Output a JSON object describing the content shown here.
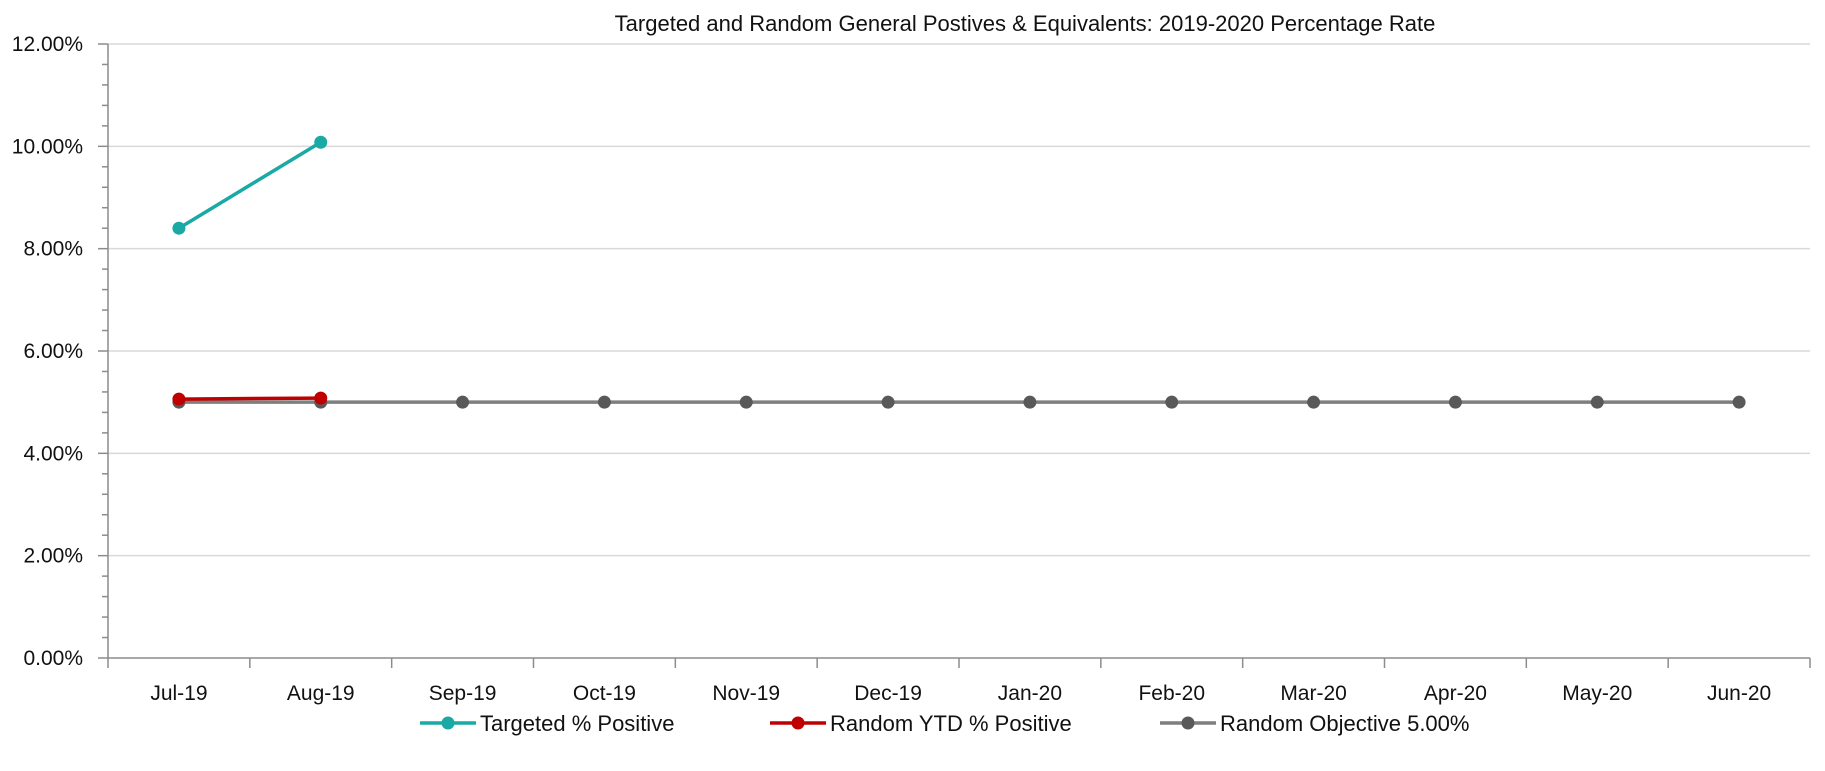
{
  "chart_data": {
    "type": "line",
    "title": "Targeted and Random General Postives & Equivalents: 2019-2020 Percentage Rate",
    "categories": [
      "Jul-19",
      "Aug-19",
      "Sep-19",
      "Oct-19",
      "Nov-19",
      "Dec-19",
      "Jan-20",
      "Feb-20",
      "Mar-20",
      "Apr-20",
      "May-20",
      "Jun-20"
    ],
    "ylim": [
      0,
      12
    ],
    "y_ticks": [
      "0.00%",
      "2.00%",
      "4.00%",
      "6.00%",
      "8.00%",
      "10.00%",
      "12.00%"
    ],
    "y_unit": "percent",
    "grid": "horizontal",
    "legend_position": "bottom",
    "series": [
      {
        "name": "Targeted % Positive",
        "color": "#1aa9a4",
        "values": [
          8.4,
          10.08,
          null,
          null,
          null,
          null,
          null,
          null,
          null,
          null,
          null,
          null
        ]
      },
      {
        "name": "Random YTD % Positive",
        "color": "#c00000",
        "values": [
          5.06,
          5.08,
          null,
          null,
          null,
          null,
          null,
          null,
          null,
          null,
          null,
          null
        ]
      },
      {
        "name": "Random Objective 5.00%",
        "color": "#7f7f7f",
        "marker_color": "#595959",
        "values": [
          5,
          5,
          5,
          5,
          5,
          5,
          5,
          5,
          5,
          5,
          5,
          5
        ]
      }
    ]
  }
}
